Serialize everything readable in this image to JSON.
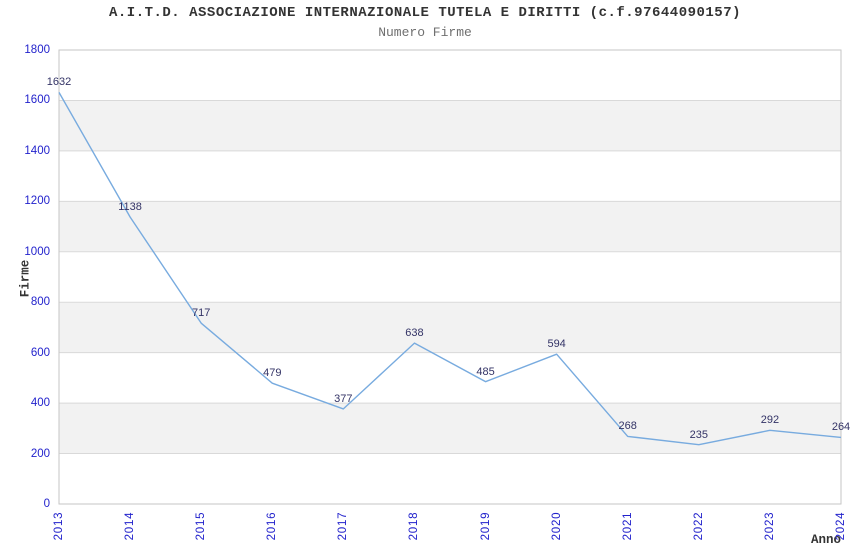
{
  "chart_data": {
    "type": "line",
    "title": "A.I.T.D. ASSOCIAZIONE INTERNAZIONALE TUTELA E DIRITTI (c.f.97644090157)",
    "subtitle": "Numero Firme",
    "xlabel": "Anno",
    "ylabel": "Firme",
    "categories": [
      "2013",
      "2014",
      "2015",
      "2016",
      "2017",
      "2018",
      "2019",
      "2020",
      "2021",
      "2022",
      "2023",
      "2024"
    ],
    "series": [
      {
        "name": "Numero Firme",
        "values": [
          1632,
          1138,
          717,
          479,
          377,
          638,
          485,
          594,
          268,
          235,
          292,
          264
        ]
      }
    ],
    "ylim": [
      0,
      1800
    ],
    "ytick_step": 200,
    "yticks": [
      0,
      200,
      400,
      600,
      800,
      1000,
      1200,
      1400,
      1600,
      1800
    ],
    "x_tick_rotation": -90,
    "value_labels_visible": true,
    "legend": "none",
    "grid": "horizontal-bands",
    "colors": {
      "line": "#78abdf",
      "tick_label": "#2222cc",
      "value_label": "#333366",
      "band": "#f2f2f2",
      "band_alt": "#ffffff",
      "gridline": "#d9d9d9",
      "border": "#c6c6c6",
      "title": "#333333",
      "subtitle": "#707070",
      "axis_title": "#333333",
      "background": "#ffffff"
    }
  }
}
